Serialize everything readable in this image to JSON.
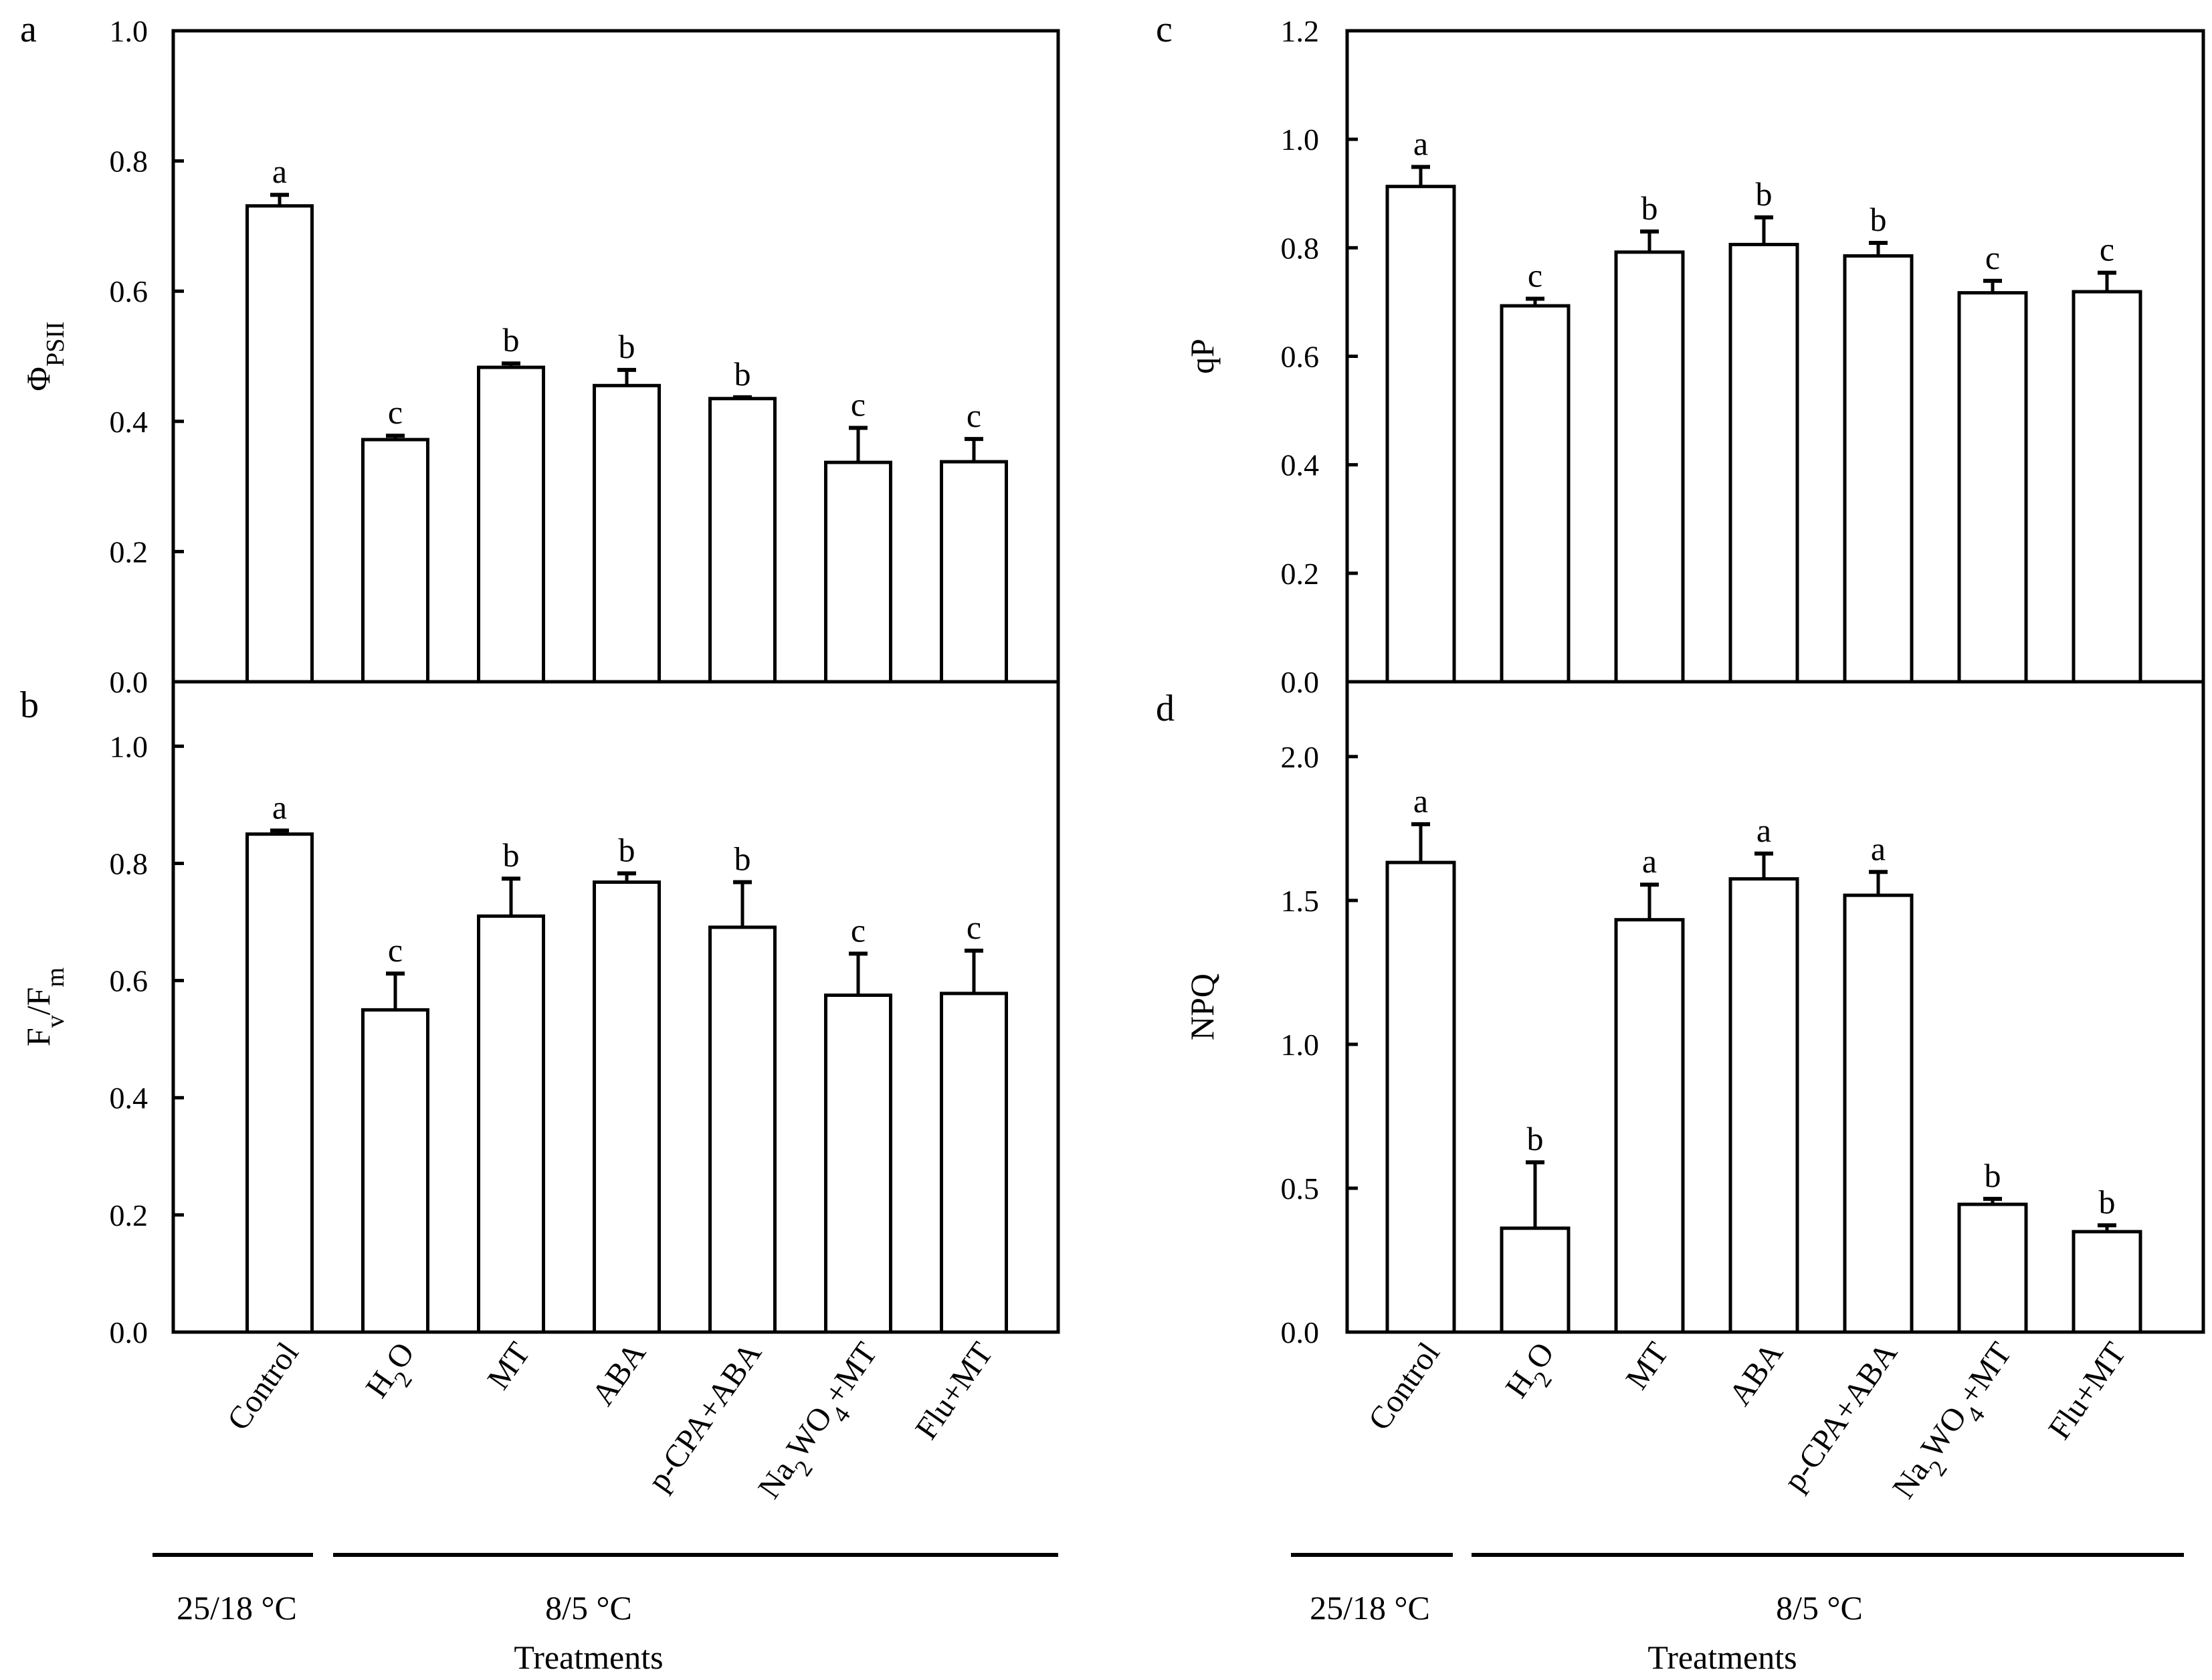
{
  "chart_data": [
    {
      "panel": "a",
      "type": "bar",
      "ylabel": "ΦPSII",
      "ylabel_parts": [
        [
          "Φ",
          ""
        ],
        [
          "PSII",
          "sub"
        ]
      ],
      "categories": [
        "Control",
        "H2O",
        "MT",
        "ABA",
        "p-CPA+ABA",
        "Na2WO4+MT",
        "Flu+MT"
      ],
      "values": [
        0.731,
        0.372,
        0.483,
        0.455,
        0.435,
        0.337,
        0.338
      ],
      "errors": [
        0.017,
        0.006,
        0.006,
        0.024,
        0.002,
        0.053,
        0.035
      ],
      "letters": [
        "a",
        "c",
        "b",
        "b",
        "b",
        "c",
        "c"
      ],
      "ylim": [
        0,
        1.0
      ],
      "yticks": [
        "0.0",
        "0.2",
        "0.4",
        "0.6",
        "0.8",
        "1.0"
      ],
      "grid": false
    },
    {
      "panel": "b",
      "type": "bar",
      "ylabel": "Fv/Fm",
      "ylabel_parts": [
        [
          "F",
          ""
        ],
        [
          "v",
          "sub"
        ],
        [
          "/F",
          ""
        ],
        [
          "m",
          "sub"
        ]
      ],
      "categories": [
        "Control",
        "H2O",
        "MT",
        "ABA",
        "p-CPA+ABA",
        "Na2WO4+MT",
        "Flu+MT"
      ],
      "values": [
        0.85,
        0.55,
        0.71,
        0.768,
        0.691,
        0.575,
        0.578
      ],
      "errors": [
        0.006,
        0.062,
        0.064,
        0.015,
        0.077,
        0.071,
        0.073
      ],
      "letters": [
        "a",
        "c",
        "b",
        "b",
        "b",
        "c",
        "c"
      ],
      "ylim": [
        0,
        1.11
      ],
      "yticks": [
        "0.0",
        "0.2",
        "0.4",
        "0.6",
        "0.8",
        "1.0"
      ],
      "grid": false
    },
    {
      "panel": "c",
      "type": "bar",
      "ylabel": "qP",
      "ylabel_parts": [
        [
          "qP",
          ""
        ]
      ],
      "categories": [
        "Control",
        "H2O",
        "MT",
        "ABA",
        "p-CPA+ABA",
        "Na2WO4+MT",
        "Flu+MT"
      ],
      "values": [
        0.913,
        0.693,
        0.792,
        0.806,
        0.785,
        0.717,
        0.719
      ],
      "errors": [
        0.036,
        0.013,
        0.038,
        0.05,
        0.024,
        0.022,
        0.035
      ],
      "letters": [
        "a",
        "c",
        "b",
        "b",
        "b",
        "c",
        "c"
      ],
      "ylim": [
        0,
        1.2
      ],
      "yticks": [
        "0.0",
        "0.2",
        "0.4",
        "0.6",
        "0.8",
        "1.0",
        "1.2"
      ],
      "grid": false
    },
    {
      "panel": "d",
      "type": "bar",
      "ylabel": "NPQ",
      "ylabel_parts": [
        [
          "NPQ",
          ""
        ]
      ],
      "categories": [
        "Control",
        "H2O",
        "MT",
        "ABA",
        "p-CPA+ABA",
        "Na2WO4+MT",
        "Flu+MT"
      ],
      "values": [
        1.632,
        0.361,
        1.433,
        1.575,
        1.518,
        0.444,
        0.349
      ],
      "errors": [
        0.133,
        0.229,
        0.122,
        0.088,
        0.081,
        0.019,
        0.022
      ],
      "letters": [
        "a",
        "b",
        "a",
        "a",
        "a",
        "b",
        "b"
      ],
      "ylim": [
        0,
        2.26
      ],
      "yticks": [
        "0.0",
        "0.5",
        "1.0",
        "1.5",
        "2.0"
      ],
      "grid": false
    }
  ],
  "conditions": {
    "control_temp": "25/18 °C",
    "cold_temp": "8/5 °C",
    "xlabel": "Treatments"
  },
  "colors": {
    "bar_fill": "#ffffff",
    "stroke": "#000000"
  }
}
